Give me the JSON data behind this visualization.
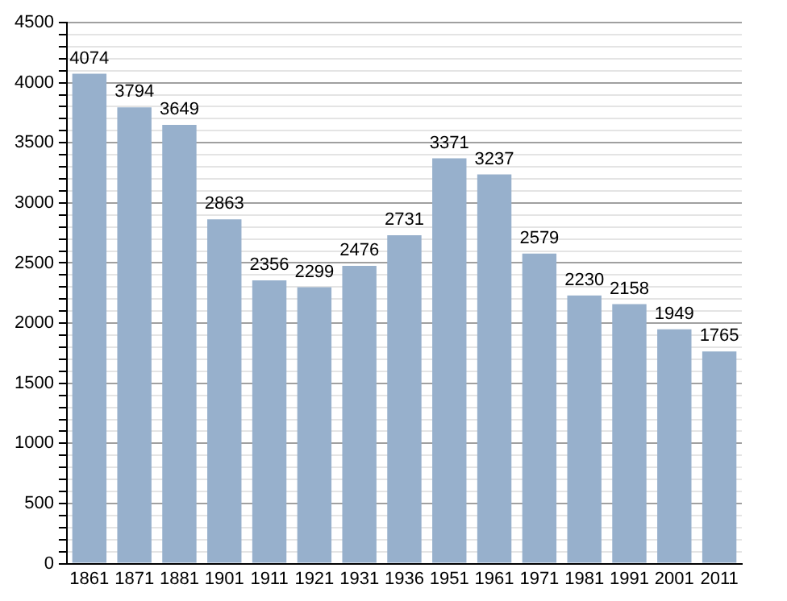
{
  "chart_data": {
    "type": "bar",
    "categories": [
      "1861",
      "1871",
      "1881",
      "1901",
      "1911",
      "1921",
      "1931",
      "1936",
      "1951",
      "1961",
      "1971",
      "1981",
      "1991",
      "2001",
      "2011"
    ],
    "values": [
      4074,
      3794,
      3649,
      2863,
      2356,
      2299,
      2476,
      2731,
      3371,
      3237,
      2579,
      2230,
      2158,
      1949,
      1765
    ],
    "color": "#97b0cc",
    "ylim": [
      0,
      4500
    ],
    "yticks": [
      0,
      {
        "value": 100,
        "label": null
      },
      {
        "value": 200,
        "label": null
      },
      {
        "value": 300,
        "label": null
      },
      {
        "value": 400,
        "label": null
      },
      500,
      {
        "value": 600,
        "label": null
      },
      {
        "value": 700,
        "label": null
      },
      {
        "value": 800,
        "label": null
      },
      {
        "value": 900,
        "label": null
      },
      1000,
      {
        "value": 1100,
        "label": null
      },
      {
        "value": 1200,
        "label": null
      },
      {
        "value": 1300,
        "label": null
      },
      {
        "value": 1400,
        "label": null
      },
      1500,
      {
        "value": 1600,
        "label": null
      },
      {
        "value": 1700,
        "label": null
      },
      {
        "value": 1800,
        "label": null
      },
      {
        "value": 1900,
        "label": null
      },
      2000,
      {
        "value": 2100,
        "label": null
      },
      {
        "value": 2200,
        "label": null
      },
      {
        "value": 2300,
        "label": null
      },
      {
        "value": 2400,
        "label": null
      },
      2500,
      {
        "value": 2600,
        "label": null
      },
      {
        "value": 2700,
        "label": null
      },
      {
        "value": 2800,
        "label": null
      },
      {
        "value": 2900,
        "label": null
      },
      3000,
      {
        "value": 3100,
        "label": null
      },
      {
        "value": 3200,
        "label": null
      },
      {
        "value": 3300,
        "label": null
      },
      {
        "value": 3400,
        "label": null
      },
      3500,
      {
        "value": 3600,
        "label": null
      },
      {
        "value": 3700,
        "label": null
      },
      {
        "value": 3800,
        "label": null
      },
      {
        "value": 3900,
        "label": null
      },
      4000,
      {
        "value": 4100,
        "label": null
      },
      {
        "value": 4200,
        "label": null
      },
      {
        "value": 4300,
        "label": null
      },
      {
        "value": 4400,
        "label": null
      },
      4500
    ],
    "grid": "y",
    "data_labels": true
  }
}
